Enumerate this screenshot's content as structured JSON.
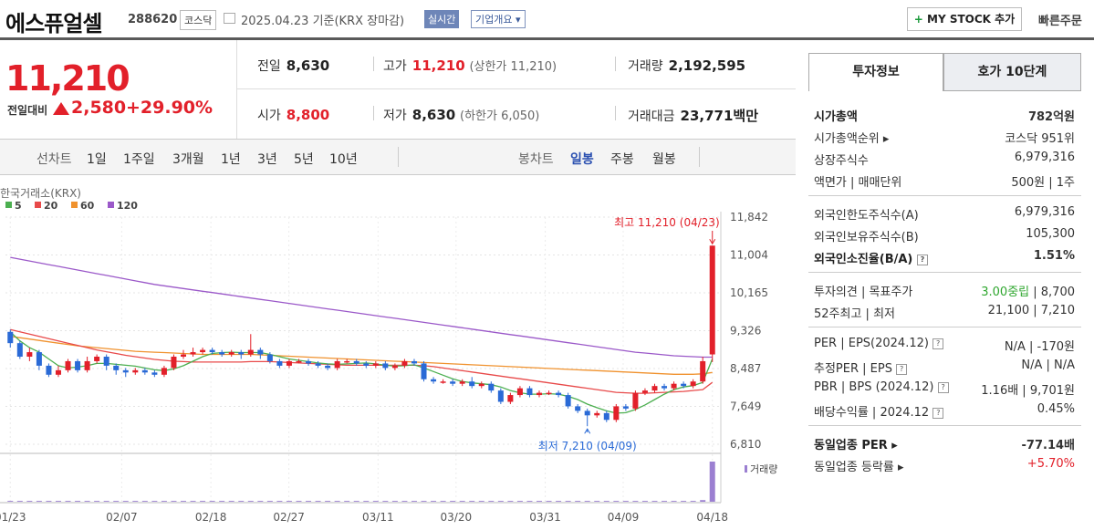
{
  "header": {
    "name": "에스퓨얼셀",
    "code": "288620",
    "market": "코스닥",
    "date": "2025.04.23  기준(KRX 장마감)",
    "realtime": "실시간",
    "company": "기업개요 ▾",
    "mystock_plus": "+",
    "mystock": "MY STOCK 추가",
    "quick_order": "빠른주문"
  },
  "price": {
    "current": "11,210",
    "change_label": "전일대비",
    "change": "2,580",
    "change_pct": "+29.90%"
  },
  "stats": {
    "prev_close_label": "전일",
    "prev_close": "8,630",
    "high_label": "고가",
    "high": "11,210",
    "upper_limit": "(상한가 11,210)",
    "volume_label": "거래량",
    "volume": "2,192,595",
    "open_label": "시가",
    "open": "8,800",
    "low_label": "저가",
    "low": "8,630",
    "lower_limit": "(하한가 6,050)",
    "amount_label": "거래대금",
    "amount": "23,771",
    "amount_unit": "백만"
  },
  "period_bar": {
    "line_label": "선차트",
    "line_periods": [
      "1일",
      "1주일",
      "3개월",
      "1년",
      "3년",
      "5년",
      "10년"
    ],
    "candle_label": "봉차트",
    "candle_periods": [
      "일봉",
      "주봉",
      "월봉"
    ],
    "active": "일봉"
  },
  "chart_data": {
    "type": "candlestick",
    "source_label": "한국거래소(KRX)",
    "ma_legend": [
      {
        "name": "5",
        "color": "#4caf50"
      },
      {
        "name": "20",
        "color": "#e84a4a"
      },
      {
        "name": "60",
        "color": "#f0922e"
      },
      {
        "name": "120",
        "color": "#9b59c9"
      }
    ],
    "y_ticks": [
      "11,842",
      "11,004",
      "10,165",
      "9,326",
      "8,487",
      "7,649",
      "6,810"
    ],
    "y_range": [
      6810,
      11842
    ],
    "x_ticks": [
      "01/23",
      "02/07",
      "02/18",
      "02/27",
      "03/11",
      "03/20",
      "03/31",
      "04/09",
      "04/18"
    ],
    "annotation_high": "최고 11,210 (04/23)",
    "annotation_low": "최저 7,210 (04/09)",
    "volume_label": "거래량",
    "up_color": "#e2202a",
    "down_color": "#2a6ad6",
    "candles": [
      [
        9300,
        9050,
        9350,
        8950
      ],
      [
        9050,
        8750,
        9100,
        8700
      ],
      [
        8750,
        8850,
        8950,
        8650
      ],
      [
        8850,
        8550,
        8900,
        8450
      ],
      [
        8550,
        8350,
        8600,
        8300
      ],
      [
        8350,
        8450,
        8550,
        8300
      ],
      [
        8450,
        8650,
        8700,
        8400
      ],
      [
        8650,
        8450,
        8700,
        8400
      ],
      [
        8450,
        8650,
        8750,
        8400
      ],
      [
        8650,
        8750,
        8800,
        8600
      ],
      [
        8750,
        8550,
        8800,
        8450
      ],
      [
        8550,
        8450,
        8600,
        8350
      ],
      [
        8450,
        8400,
        8500,
        8300
      ],
      [
        8400,
        8450,
        8500,
        8350
      ],
      [
        8450,
        8400,
        8500,
        8350
      ],
      [
        8400,
        8350,
        8450,
        8300
      ],
      [
        8350,
        8500,
        8550,
        8300
      ],
      [
        8500,
        8750,
        8800,
        8450
      ],
      [
        8750,
        8800,
        8900,
        8700
      ],
      [
        8800,
        8850,
        8950,
        8750
      ],
      [
        8850,
        8900,
        8950,
        8800
      ],
      [
        8900,
        8850,
        8950,
        8800
      ],
      [
        8850,
        8800,
        8900,
        8750
      ],
      [
        8800,
        8850,
        8900,
        8750
      ],
      [
        8850,
        8800,
        8900,
        8700
      ],
      [
        8800,
        8900,
        9250,
        8750
      ],
      [
        8900,
        8800,
        8950,
        8700
      ],
      [
        8800,
        8650,
        8850,
        8600
      ],
      [
        8650,
        8550,
        8700,
        8500
      ],
      [
        8550,
        8650,
        8700,
        8500
      ],
      [
        8650,
        8650,
        8700,
        8600
      ],
      [
        8650,
        8600,
        8700,
        8550
      ],
      [
        8600,
        8550,
        8650,
        8500
      ],
      [
        8550,
        8500,
        8600,
        8450
      ],
      [
        8500,
        8650,
        8700,
        8450
      ],
      [
        8650,
        8650,
        8700,
        8600
      ],
      [
        8650,
        8600,
        8700,
        8550
      ],
      [
        8600,
        8550,
        8650,
        8500
      ],
      [
        8550,
        8600,
        8650,
        8500
      ],
      [
        8600,
        8500,
        8650,
        8450
      ],
      [
        8500,
        8550,
        8600,
        8450
      ],
      [
        8550,
        8650,
        8700,
        8500
      ],
      [
        8650,
        8600,
        8700,
        8550
      ],
      [
        8600,
        8250,
        8650,
        8200
      ],
      [
        8250,
        8200,
        8300,
        8150
      ],
      [
        8200,
        8200,
        8250,
        8150
      ],
      [
        8200,
        8150,
        8250,
        8100
      ],
      [
        8150,
        8200,
        8250,
        8100
      ],
      [
        8200,
        8100,
        8300,
        8050
      ],
      [
        8100,
        8150,
        8200,
        8050
      ],
      [
        8150,
        8000,
        8200,
        7950
      ],
      [
        8000,
        7750,
        8050,
        7700
      ],
      [
        7750,
        7900,
        7950,
        7700
      ],
      [
        7900,
        8050,
        8100,
        7850
      ],
      [
        8050,
        7900,
        8100,
        7850
      ],
      [
        7900,
        7950,
        8000,
        7850
      ],
      [
        7950,
        7950,
        8000,
        7900
      ],
      [
        7950,
        7900,
        8000,
        7850
      ],
      [
        7900,
        7650,
        7950,
        7600
      ],
      [
        7650,
        7550,
        7700,
        7500
      ],
      [
        7550,
        7450,
        7600,
        7210
      ],
      [
        7450,
        7500,
        7550,
        7400
      ],
      [
        7500,
        7350,
        7550,
        7300
      ],
      [
        7350,
        7650,
        7700,
        7300
      ],
      [
        7650,
        7600,
        7700,
        7550
      ],
      [
        7600,
        7950,
        8000,
        7550
      ],
      [
        7950,
        8000,
        8050,
        7900
      ],
      [
        8000,
        8100,
        8150,
        7950
      ],
      [
        8100,
        8050,
        8150,
        8000
      ],
      [
        8050,
        8150,
        8200,
        8000
      ],
      [
        8150,
        8100,
        8200,
        8050
      ],
      [
        8100,
        8200,
        8250,
        8050
      ],
      [
        8200,
        8650,
        8750,
        8150
      ],
      [
        8800,
        11210,
        11210,
        8630
      ]
    ],
    "ma": {
      "5": [
        9300,
        9100,
        8950,
        8850,
        8700,
        8550,
        8500,
        8520,
        8550,
        8600,
        8600,
        8580,
        8560,
        8540,
        8500,
        8460,
        8440,
        8480,
        8550,
        8650,
        8750,
        8820,
        8840,
        8850,
        8840,
        8840,
        8840,
        8800,
        8750,
        8700,
        8670,
        8640,
        8610,
        8590,
        8580,
        8590,
        8600,
        8610,
        8590,
        8560,
        8540,
        8550,
        8570,
        8500,
        8420,
        8340,
        8260,
        8200,
        8170,
        8150,
        8130,
        8080,
        8000,
        7950,
        7920,
        7920,
        7930,
        7920,
        7870,
        7800,
        7700,
        7620,
        7550,
        7500,
        7510,
        7580,
        7680,
        7800,
        7920,
        8020,
        8080,
        8110,
        8180,
        8700
      ],
      "20": [
        9350,
        9300,
        9250,
        9200,
        9150,
        9100,
        9050,
        9000,
        8950,
        8900,
        8860,
        8820,
        8780,
        8750,
        8720,
        8690,
        8670,
        8650,
        8640,
        8630,
        8630,
        8630,
        8630,
        8630,
        8630,
        8640,
        8640,
        8640,
        8630,
        8620,
        8610,
        8600,
        8590,
        8580,
        8570,
        8560,
        8560,
        8560,
        8560,
        8560,
        8560,
        8560,
        8560,
        8550,
        8530,
        8500,
        8470,
        8440,
        8410,
        8380,
        8350,
        8320,
        8290,
        8260,
        8230,
        8200,
        8170,
        8140,
        8110,
        8080,
        8050,
        8020,
        7990,
        7960,
        7950,
        7940,
        7940,
        7950,
        7960,
        7970,
        7980,
        8000,
        8020,
        8180
      ],
      "60": [
        9200,
        9170,
        9140,
        9110,
        9080,
        9050,
        9020,
        8990,
        8970,
        8950,
        8930,
        8910,
        8890,
        8870,
        8860,
        8850,
        8840,
        8830,
        8820,
        8810,
        8800,
        8800,
        8800,
        8800,
        8800,
        8800,
        8790,
        8780,
        8770,
        8760,
        8750,
        8740,
        8730,
        8720,
        8710,
        8700,
        8690,
        8680,
        8670,
        8660,
        8650,
        8640,
        8630,
        8620,
        8610,
        8600,
        8590,
        8580,
        8570,
        8560,
        8550,
        8540,
        8530,
        8520,
        8510,
        8500,
        8490,
        8480,
        8470,
        8460,
        8450,
        8440,
        8430,
        8420,
        8410,
        8400,
        8390,
        8380,
        8370,
        8360,
        8360,
        8360,
        8370,
        8400
      ],
      "120": [
        10950,
        10910,
        10870,
        10830,
        10790,
        10750,
        10710,
        10670,
        10630,
        10590,
        10550,
        10510,
        10470,
        10430,
        10390,
        10350,
        10320,
        10290,
        10260,
        10230,
        10200,
        10170,
        10140,
        10110,
        10080,
        10050,
        10020,
        9990,
        9960,
        9930,
        9900,
        9870,
        9840,
        9810,
        9780,
        9750,
        9720,
        9690,
        9660,
        9630,
        9600,
        9570,
        9540,
        9510,
        9480,
        9450,
        9420,
        9390,
        9360,
        9330,
        9300,
        9270,
        9240,
        9210,
        9180,
        9150,
        9120,
        9090,
        9060,
        9030,
        9000,
        8970,
        8940,
        8910,
        8880,
        8850,
        8830,
        8810,
        8790,
        8770,
        8760,
        8750,
        8740,
        8740
      ]
    },
    "volume": [
      2,
      2,
      2,
      2,
      2,
      2,
      2,
      2,
      2,
      2,
      2,
      2,
      2,
      2,
      2,
      2,
      2,
      2,
      2,
      2,
      2,
      2,
      2,
      2,
      2,
      2,
      2,
      2,
      2,
      2,
      2,
      2,
      2,
      2,
      2,
      2,
      2,
      2,
      2,
      2,
      2,
      2,
      2,
      2,
      2,
      2,
      2,
      2,
      2,
      2,
      2,
      2,
      2,
      2,
      2,
      2,
      2,
      2,
      2,
      2,
      2,
      2,
      2,
      2,
      2,
      2,
      2,
      2,
      2,
      2,
      2,
      2,
      4,
      100
    ]
  },
  "right_panel": {
    "tab1": "투자정보",
    "tab2": "호가 10단계",
    "g1": [
      {
        "k": "시가총액",
        "v": "782억원",
        "bold": true
      },
      {
        "k": "시가총액순위 ▸",
        "v": "코스닥 951위"
      },
      {
        "k": "상장주식수",
        "v": "6,979,316"
      },
      {
        "k": "액면가 | 매매단위",
        "v": "500원 | 1주"
      }
    ],
    "g2": [
      {
        "k": "외국인한도주식수(A)",
        "v": "6,979,316"
      },
      {
        "k": "외국인보유주식수(B)",
        "v": "105,300"
      },
      {
        "k": "외국인소진율(B/A)",
        "v": "1.51%",
        "bold": true,
        "q": true
      }
    ],
    "g3": {
      "opinion_label": "투자의견 | 목표주가",
      "opinion": "3.00중립",
      "target": " | 8,700",
      "w52_label": "52주최고 | 최저",
      "w52": "21,100 | 7,210"
    },
    "g4": [
      {
        "k": "PER | EPS(2024.12)",
        "v": "N/A | -170원",
        "q": true
      },
      {
        "k": "추정PER | EPS",
        "v": "N/A | N/A",
        "q": true
      },
      {
        "k": "PBR | BPS (2024.12)",
        "v": "1.16배 | 9,701원",
        "q": true
      },
      {
        "k": "배당수익률 | 2024.12",
        "v": "0.45%",
        "q": true
      }
    ],
    "g5": {
      "per_label": "동일업종 PER ▸",
      "per": "-77.14배",
      "rate_label": "동일업종 등락률 ▸",
      "rate": "+5.70%"
    }
  }
}
